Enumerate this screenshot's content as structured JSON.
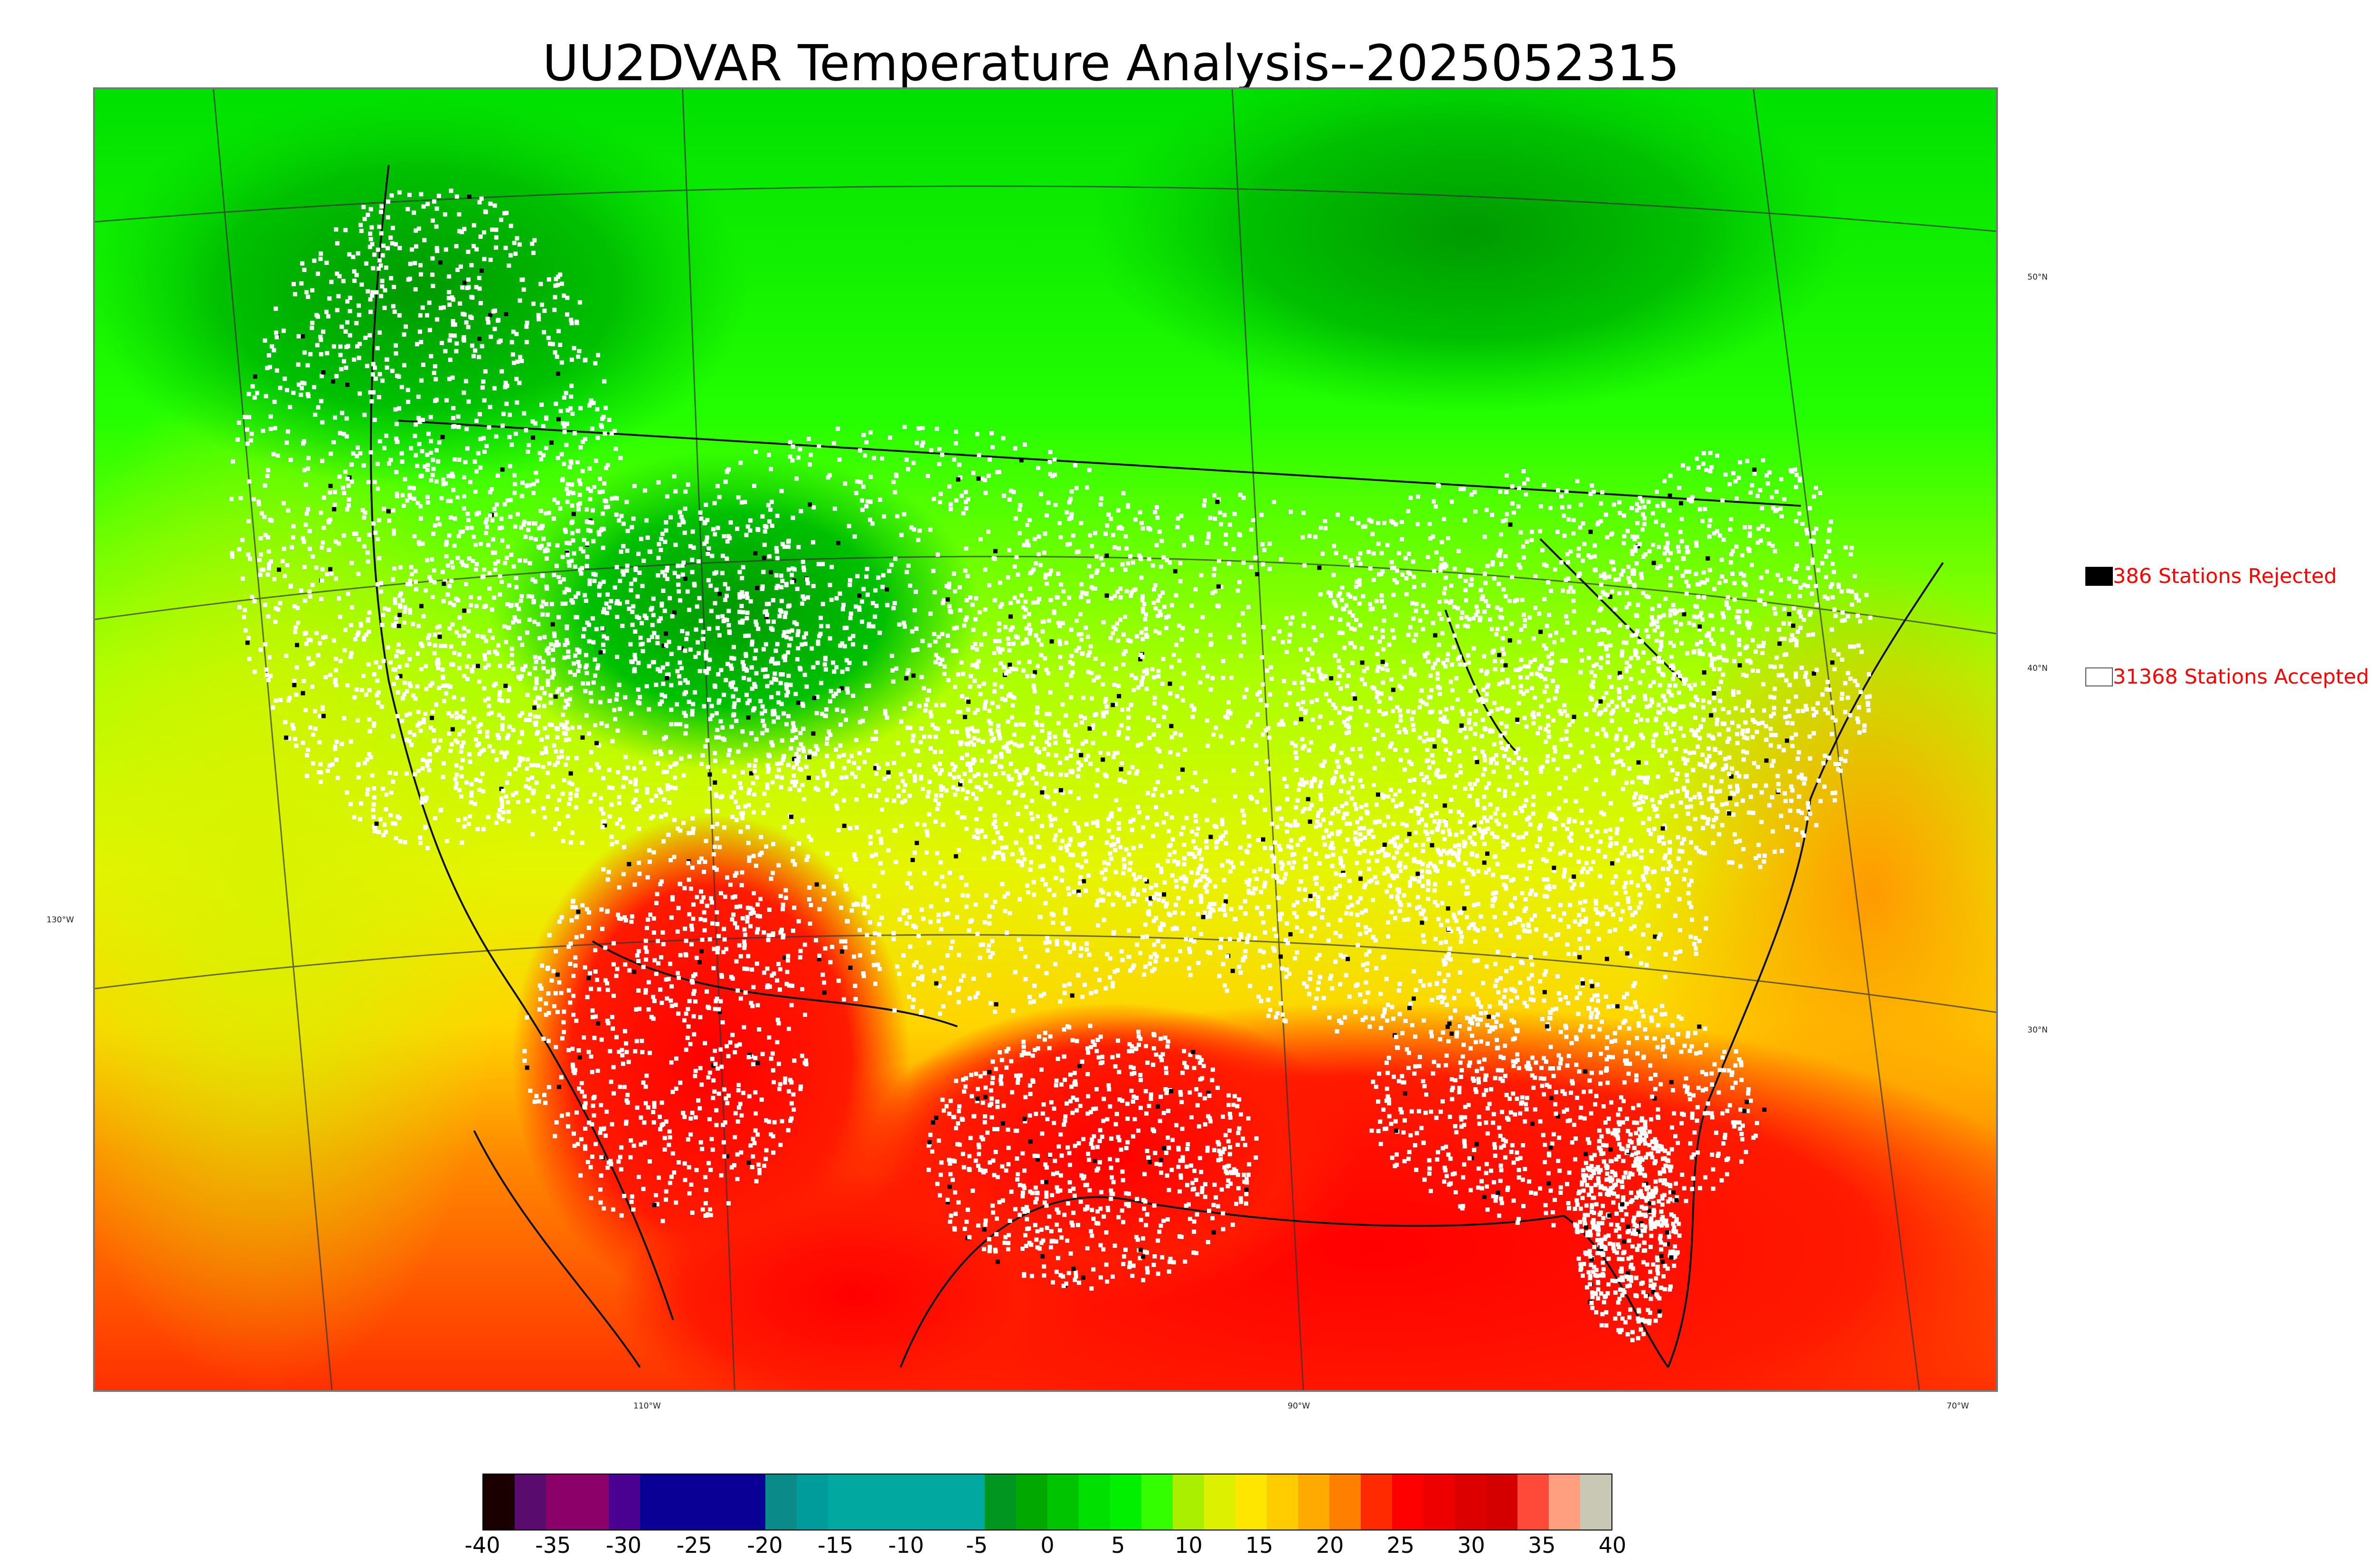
{
  "title": "UU2DVAR Temperature Analysis--2025052315",
  "legend": {
    "rejected": {
      "label": "386 Stations Rejected",
      "swatch_color": "#000000"
    },
    "accepted": {
      "label": "31368 Stations Accepted",
      "swatch_color": "#ffffff"
    }
  },
  "graticule": {
    "lat_labels": [
      "50°N",
      "40°N",
      "30°N"
    ],
    "lon_labels": [
      "130°W",
      "110°W",
      "90°W",
      "70°W"
    ]
  },
  "colorbar": {
    "ticks": [
      "-40",
      "-35",
      "-30",
      "-25",
      "-20",
      "-15",
      "-10",
      "-5",
      "0",
      "5",
      "10",
      "15",
      "20",
      "25",
      "30",
      "35",
      "40"
    ],
    "colors": [
      "#1a0000",
      "#5a0b6e",
      "#8b0069",
      "#8b0069",
      "#4a0090",
      "#0b0096",
      "#0b0096",
      "#0b0096",
      "#0b0096",
      "#0b8a8a",
      "#009b9b",
      "#00a8a0",
      "#00a8a0",
      "#00a8a0",
      "#00a8a0",
      "#00a8a0",
      "#00961f",
      "#00a800",
      "#00c400",
      "#00e000",
      "#00f000",
      "#33ff00",
      "#aaee00",
      "#ddf000",
      "#ffe600",
      "#ffcc00",
      "#ffaa00",
      "#ff8000",
      "#ff2a00",
      "#ff0000",
      "#ee0000",
      "#dd0000",
      "#d40000",
      "#ff4a3a",
      "#ff9f80",
      "#c8c8b4"
    ]
  },
  "colors": {
    "legend_text": "#ff0000",
    "cold_green": "#00a000",
    "cool_green": "#00ff00",
    "mild_yellow": "#e6ff00",
    "warm_orange": "#ffb000",
    "hot_red": "#ff0000"
  }
}
